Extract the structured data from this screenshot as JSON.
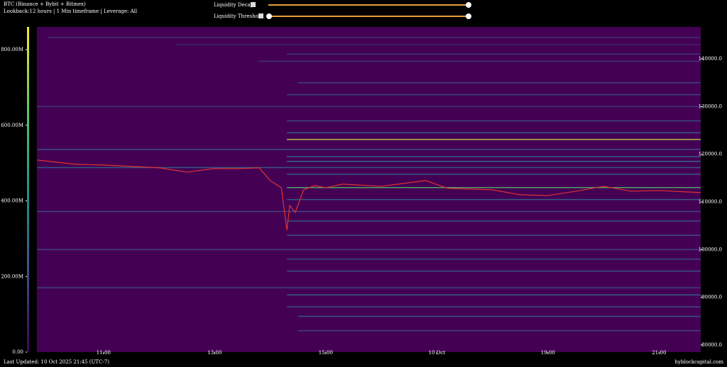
{
  "header": {
    "title": "BTC (Binance + Bybit + Bitmex)",
    "subtitle": "Lookback:12 hours | 1 Min timeframe | Leverage: All"
  },
  "controls": {
    "decay": "Liquidity Decay",
    "threshold": "Liquidity Threshold"
  },
  "footer": {
    "updated": "Last Updated: 10 Oct 2025 21:45 (UTC-7)",
    "site": "hyblockcapital.com"
  },
  "chart_data": {
    "type": "heatmap",
    "background": "#440154",
    "colorscale": [
      "#440154",
      "#3b528b",
      "#21918c",
      "#5ec962",
      "#fde725"
    ],
    "line_color": "#e0322f",
    "xlim": [
      9.8,
      21.75
    ],
    "xticks": [
      {
        "value": 11,
        "label": "11:00"
      },
      {
        "value": 13,
        "label": "13:00"
      },
      {
        "value": 15,
        "label": "15:00"
      },
      {
        "value": 17,
        "label": "10 Oct"
      },
      {
        "value": 19,
        "label": "19:00"
      },
      {
        "value": 21,
        "label": "21:00"
      }
    ],
    "ylim": [
      78500,
      146700
    ],
    "yticks": [
      {
        "value": 80000,
        "label": "80000.0"
      },
      {
        "value": 90000,
        "label": "90000.0"
      },
      {
        "value": 100000,
        "label": "100000.0"
      },
      {
        "value": 110000,
        "label": "110000.0"
      },
      {
        "value": 120000,
        "label": "120000.0"
      },
      {
        "value": 130000,
        "label": "130000.0"
      },
      {
        "value": 140000,
        "label": "140000.0"
      }
    ],
    "clim": [
      0,
      860000000
    ],
    "cticks": [
      {
        "value": 0,
        "label": "0.00"
      },
      {
        "value": 200000000,
        "label": "200.00M"
      },
      {
        "value": 400000000,
        "label": "400.00M"
      },
      {
        "value": 600000000,
        "label": "600.00M"
      },
      {
        "value": 800000000,
        "label": "800.00M"
      }
    ],
    "x": [
      9.8,
      10.5,
      11,
      12,
      12.5,
      13,
      13.5,
      13.8,
      14.0,
      14.2,
      14.3,
      14.35,
      14.45,
      14.6,
      14.8,
      15.0,
      15.3,
      16.0,
      16.5,
      16.8,
      17.2,
      18.0,
      18.5,
      19.0,
      19.5,
      20.0,
      20.5,
      21.0,
      21.75
    ],
    "values": [
      118780,
      117890,
      117740,
      117150,
      116250,
      117000,
      117000,
      117150,
      114470,
      112980,
      104070,
      109270,
      107790,
      112540,
      113430,
      112980,
      113730,
      113280,
      114030,
      114470,
      112840,
      112540,
      111500,
      111350,
      112240,
      113280,
      112240,
      112390,
      111950
    ],
    "levels": {
      "price": [
        144500,
        143000,
        141000,
        139500,
        135000,
        132500,
        130000,
        127000,
        124500,
        123100,
        121000,
        119500,
        118500,
        117200,
        115800,
        113000,
        110500,
        108000,
        106000,
        103000,
        100000,
        98000,
        95500,
        92000,
        90500,
        88000,
        86000,
        83000
      ],
      "start": [
        10.0,
        12.3,
        14.3,
        13.8,
        14.5,
        14.3,
        9.8,
        14.3,
        14.3,
        14.3,
        9.8,
        14.3,
        14.3,
        9.8,
        14.3,
        14.3,
        14.3,
        9.8,
        14.3,
        14.3,
        9.8,
        14.3,
        14.3,
        9.8,
        14.3,
        14.3,
        14.5,
        14.5
      ],
      "value": [
        150000000,
        120000000,
        180000000,
        160000000,
        200000000,
        220000000,
        170000000,
        230000000,
        300000000,
        780000000,
        250000000,
        320000000,
        350000000,
        280000000,
        300000000,
        600000000,
        300000000,
        220000000,
        260000000,
        240000000,
        200000000,
        220000000,
        260000000,
        200000000,
        300000000,
        240000000,
        280000000,
        200000000
      ]
    }
  }
}
